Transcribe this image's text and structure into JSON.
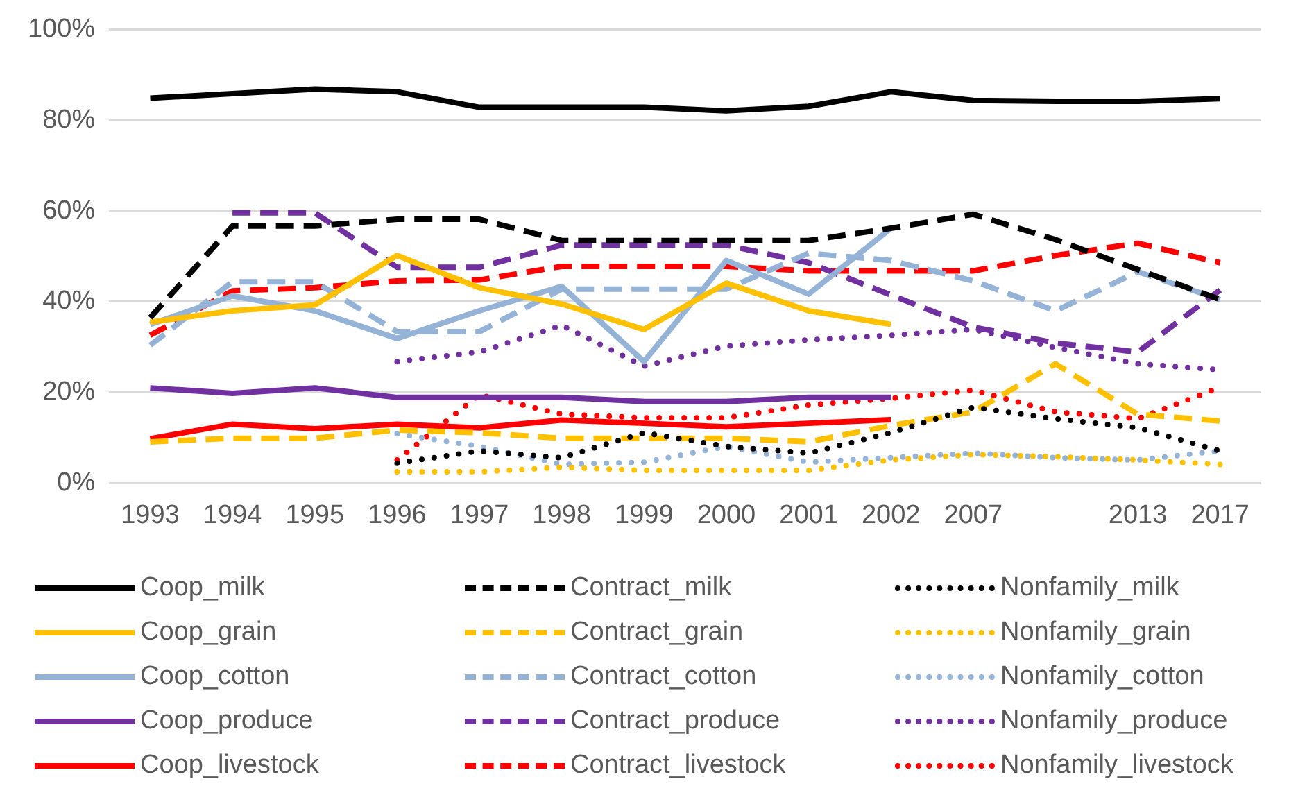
{
  "chart_data": {
    "type": "line",
    "categories": [
      "1993",
      "1994",
      "1995",
      "1996",
      "1997",
      "1998",
      "1999",
      "2000",
      "2001",
      "2002",
      "2007",
      null,
      "2013",
      "2017"
    ],
    "ylim": [
      0,
      100
    ],
    "yticks": [
      {
        "value": 0,
        "label": "0%"
      },
      {
        "value": 20,
        "label": "20%"
      },
      {
        "value": 40,
        "label": "40%"
      },
      {
        "value": 60,
        "label": "60%"
      },
      {
        "value": 80,
        "label": "80%"
      },
      {
        "value": 100,
        "label": "100%"
      }
    ],
    "grid": "y",
    "legend": "bottom",
    "marker": "none",
    "series": [
      {
        "name": "Coop_milk",
        "color": "#000000",
        "line_style": "solid",
        "values": [
          84.9,
          85.9,
          86.9,
          86.3,
          82.9,
          82.9,
          82.9,
          82.1,
          83.1,
          86.3,
          84.4,
          84.2,
          84.2,
          84.8
        ]
      },
      {
        "name": "Contract_milk",
        "color": "#000000",
        "line_style": "dashed",
        "values": [
          36.5,
          56.7,
          56.7,
          58.2,
          58.2,
          53.5,
          53.5,
          53.5,
          53.5,
          56.2,
          59.3,
          53.7,
          47.1,
          40.5
        ]
      },
      {
        "name": "Nonfamily_milk",
        "color": "#000000",
        "line_style": "dotted",
        "values": [
          null,
          null,
          null,
          4.4,
          7.1,
          5.6,
          11.1,
          8.1,
          6.6,
          11.1,
          16.7,
          14.2,
          12.2,
          7.1
        ]
      },
      {
        "name": "Coop_grain",
        "color": "#ffc000",
        "line_style": "solid",
        "values": [
          35.5,
          38.0,
          39.3,
          50.2,
          43.1,
          39.5,
          33.9,
          44.1,
          38.0,
          35.0,
          null,
          null,
          null,
          null
        ]
      },
      {
        "name": "Contract_grain",
        "color": "#ffc000",
        "line_style": "dashed",
        "values": [
          9.1,
          9.9,
          9.9,
          11.7,
          11.1,
          9.9,
          9.9,
          9.9,
          9.1,
          12.7,
          15.7,
          26.3,
          15.2,
          13.7
        ]
      },
      {
        "name": "Nonfamily_grain",
        "color": "#ffc000",
        "line_style": "dotted",
        "values": [
          null,
          null,
          null,
          2.5,
          2.5,
          3.5,
          2.8,
          2.8,
          2.8,
          5.1,
          6.3,
          5.8,
          5.1,
          4.1
        ]
      },
      {
        "name": "Coop_cotton",
        "color": "#95b3d7",
        "line_style": "solid",
        "values": [
          35.0,
          41.3,
          38.0,
          31.9,
          38.0,
          43.4,
          26.8,
          49.1,
          41.7,
          56.2,
          null,
          null,
          null,
          null
        ]
      },
      {
        "name": "Contract_cotton",
        "color": "#95b3d7",
        "line_style": "dashed",
        "values": [
          30.4,
          44.4,
          44.4,
          33.4,
          33.4,
          42.8,
          42.8,
          42.8,
          50.7,
          49.1,
          44.6,
          38.0,
          46.6,
          40.5
        ]
      },
      {
        "name": "Nonfamily_cotton",
        "color": "#95b3d7",
        "line_style": "dotted",
        "values": [
          null,
          null,
          null,
          10.9,
          8.1,
          4.1,
          4.6,
          8.1,
          4.6,
          5.6,
          6.6,
          5.6,
          5.1,
          7.1
        ]
      },
      {
        "name": "Coop_produce",
        "color": "#7030a0",
        "line_style": "solid",
        "values": [
          21.0,
          19.8,
          21.0,
          18.9,
          18.9,
          18.9,
          18.0,
          18.0,
          18.9,
          18.9,
          null,
          null,
          null,
          null
        ]
      },
      {
        "name": "Contract_produce",
        "color": "#7030a0",
        "line_style": "dashed",
        "values": [
          null,
          59.6,
          59.6,
          47.6,
          47.6,
          52.5,
          52.5,
          52.5,
          48.6,
          41.5,
          34.4,
          30.9,
          28.9,
          42.6
        ]
      },
      {
        "name": "Nonfamily_produce",
        "color": "#7030a0",
        "line_style": "dotted",
        "values": [
          null,
          null,
          null,
          26.8,
          28.9,
          34.8,
          25.8,
          30.2,
          31.6,
          32.6,
          33.9,
          29.9,
          26.3,
          25.0
        ]
      },
      {
        "name": "Coop_livestock",
        "color": "#ff0000",
        "line_style": "solid",
        "values": [
          9.8,
          13.0,
          12.0,
          13.0,
          12.2,
          13.9,
          13.2,
          12.4,
          13.2,
          14.0,
          null,
          null,
          null,
          null
        ]
      },
      {
        "name": "Contract_livestock",
        "color": "#ff0000",
        "line_style": "dashed",
        "values": [
          32.6,
          42.4,
          43.1,
          44.6,
          44.8,
          47.8,
          47.8,
          47.8,
          46.8,
          46.8,
          46.8,
          50.2,
          52.9,
          48.6
        ]
      },
      {
        "name": "Nonfamily_livestock",
        "color": "#ff0000",
        "line_style": "dotted",
        "values": [
          null,
          null,
          null,
          5.1,
          19.5,
          15.2,
          14.4,
          14.4,
          17.2,
          18.7,
          20.5,
          15.7,
          14.2,
          21.1
        ]
      }
    ]
  }
}
